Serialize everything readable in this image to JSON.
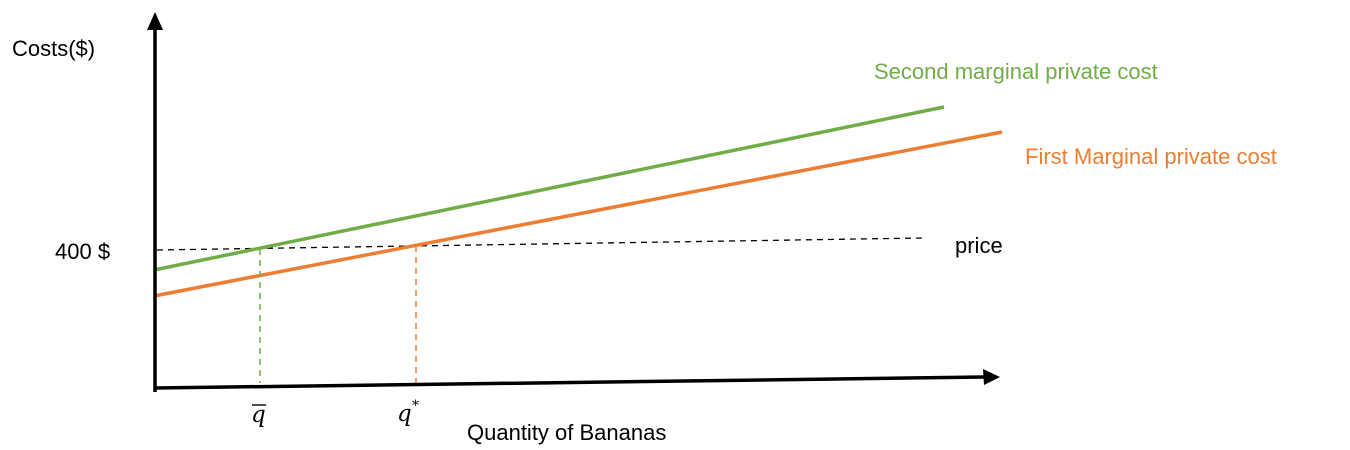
{
  "diagram": {
    "y_axis_label": "Costs($)",
    "x_axis_label": "Quantity of Bananas",
    "price_value_label": "400 $",
    "price_line_label": "price",
    "q_bar_label": "q",
    "q_star_label": "q",
    "q_star_superscript": "*",
    "curves": {
      "second_mpc": {
        "label": "Second marginal private cost",
        "color": "#70AD47"
      },
      "first_mpc": {
        "label": "First Marginal private cost",
        "color": "#ED7D31"
      }
    },
    "price_line_color": "#000000"
  }
}
